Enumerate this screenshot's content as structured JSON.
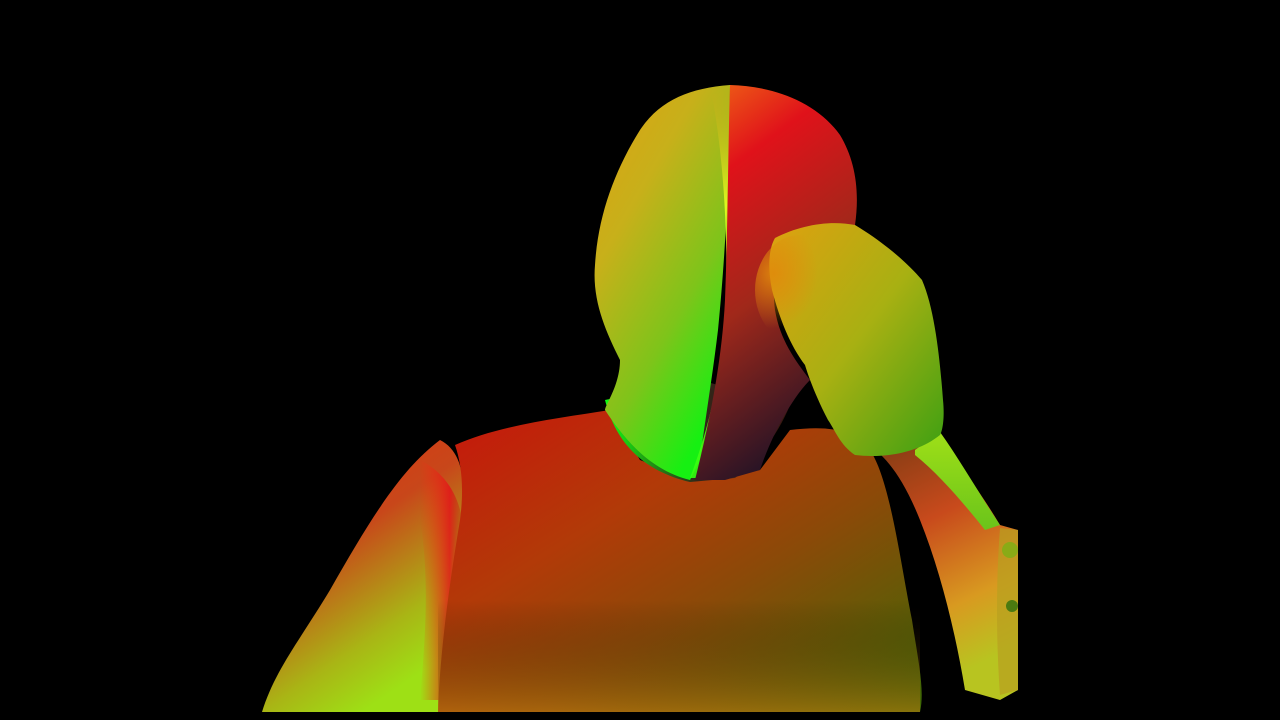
{
  "image": {
    "kind": "densepose-style surface-coordinate rendering",
    "background_color": "#000000",
    "palette": {
      "red": "#e0120f",
      "orange": "#e07a12",
      "yellow": "#d9e01a",
      "green": "#2ee81a",
      "dark": "#1a0f14"
    }
  }
}
